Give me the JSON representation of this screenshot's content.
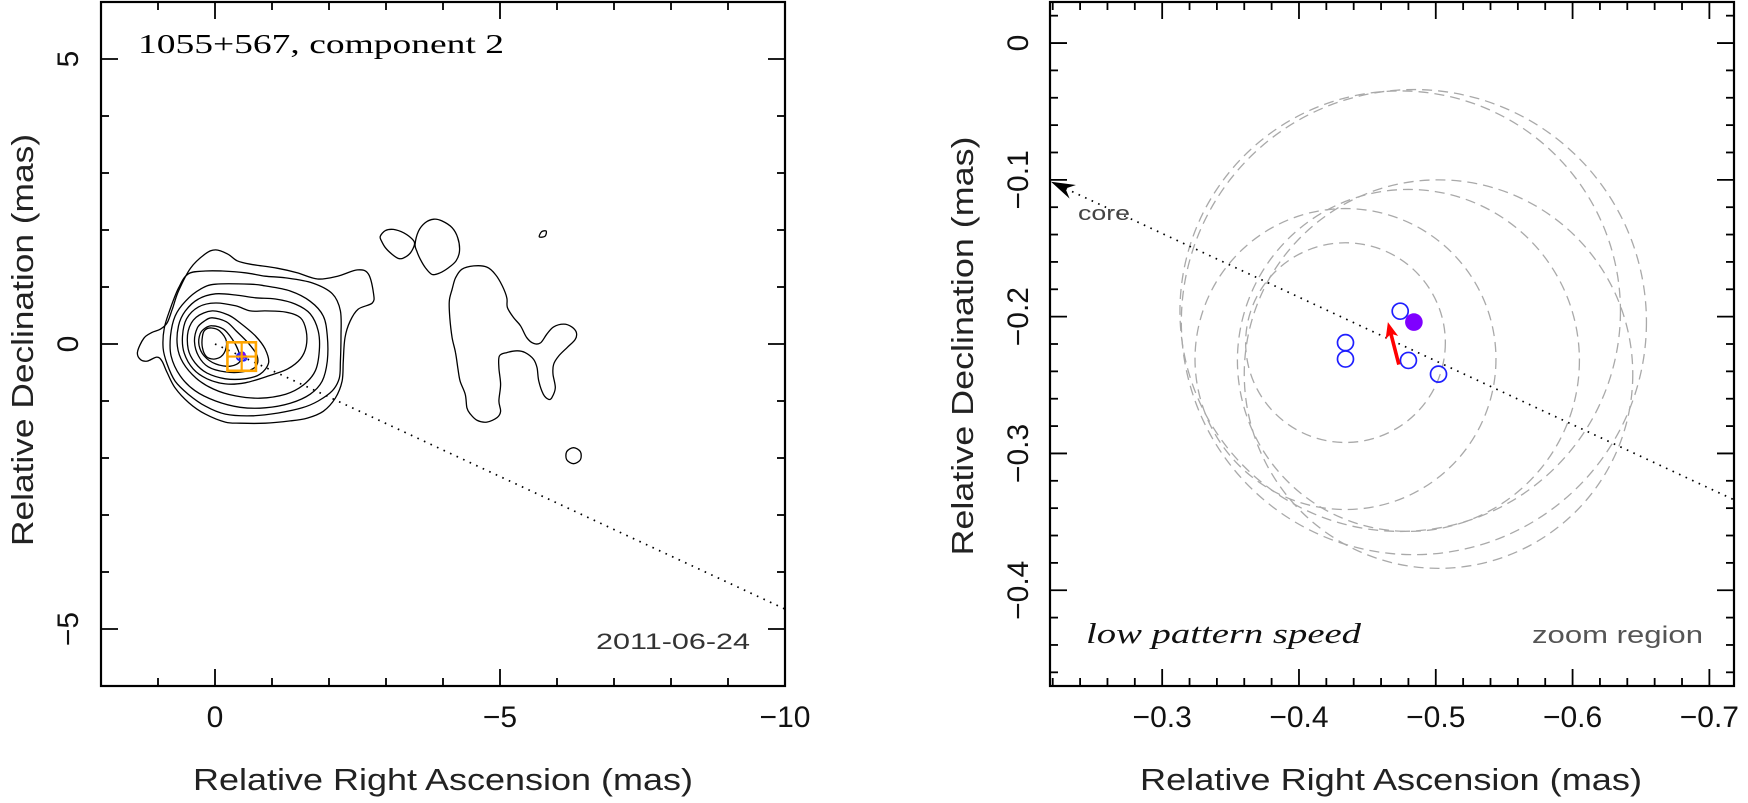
{
  "colors": {
    "open_marker": "#1f1fff",
    "filled_marker": "#7f00ff",
    "motion_arrow": "#ff0000",
    "uncertainty_circle": "#a9a9a9",
    "zoom_box": "#ffa500",
    "core_arrow": "#000000"
  },
  "chart_data": [
    {
      "type": "contour",
      "title": "1055+567, component 2",
      "annotation": "2011-06-24",
      "xlabel": "Relative Right Ascension (mas)",
      "ylabel": "Relative Declination (mas)",
      "xlim": [
        2,
        -10
      ],
      "ylim": [
        -6,
        6
      ],
      "xticks": [
        0,
        -5,
        -10
      ],
      "xtick_labels": [
        "0",
        "−5",
        "−10"
      ],
      "yticks": [
        5,
        0,
        -5
      ],
      "ytick_labels": [
        "5",
        "0",
        "−5"
      ],
      "major_tick_step": 5,
      "minor_tick_step": 1,
      "jet_axis": {
        "slope": 0.465,
        "start_x": 0,
        "style": "dotted"
      },
      "zoom_box": {
        "xlim": [
          -0.218,
          -0.718
        ],
        "ylim": [
          -0.47,
          0.03
        ]
      },
      "contours": [
        [
          [
            1.36,
            -0.14
          ],
          [
            1.25,
            0.1
          ],
          [
            1.11,
            0.2
          ],
          [
            0.96,
            0.26
          ],
          [
            0.84,
            0.37
          ],
          [
            0.75,
            0.61
          ],
          [
            0.64,
            0.93
          ],
          [
            0.43,
            1.33
          ],
          [
            0.17,
            1.58
          ],
          [
            -0.01,
            1.65
          ],
          [
            -0.22,
            1.58
          ],
          [
            -0.39,
            1.46
          ],
          [
            -0.62,
            1.4
          ],
          [
            -1.09,
            1.33
          ],
          [
            -1.44,
            1.25
          ],
          [
            -1.8,
            1.14
          ],
          [
            -2.15,
            1.19
          ],
          [
            -2.5,
            1.3
          ],
          [
            -2.69,
            1.23
          ],
          [
            -2.78,
            0.89
          ],
          [
            -2.76,
            0.72
          ],
          [
            -2.51,
            0.61
          ],
          [
            -2.37,
            0.4
          ],
          [
            -2.28,
            0.11
          ],
          [
            -2.25,
            -0.3
          ],
          [
            -2.23,
            -0.65
          ],
          [
            -2.11,
            -0.95
          ],
          [
            -1.9,
            -1.18
          ],
          [
            -1.62,
            -1.3
          ],
          [
            -1.32,
            -1.35
          ],
          [
            -0.88,
            -1.39
          ],
          [
            -0.44,
            -1.39
          ],
          [
            -0.18,
            -1.37
          ],
          [
            0.17,
            -1.23
          ],
          [
            0.46,
            -1.03
          ],
          [
            0.7,
            -0.77
          ],
          [
            0.84,
            -0.5
          ],
          [
            0.93,
            -0.3
          ],
          [
            1.02,
            -0.23
          ],
          [
            1.19,
            -0.3
          ],
          [
            1.31,
            -0.27
          ]
        ],
        [
          [
            0.17,
            1.28
          ],
          [
            -0.13,
            1.28
          ],
          [
            -0.53,
            1.25
          ],
          [
            -0.88,
            1.19
          ],
          [
            -1.24,
            1.16
          ],
          [
            -1.71,
            1.07
          ],
          [
            -2.06,
            0.88
          ],
          [
            -2.2,
            0.58
          ],
          [
            -2.21,
            0.14
          ],
          [
            -2.2,
            -0.3
          ],
          [
            -2.18,
            -0.6
          ],
          [
            -2.06,
            -0.82
          ],
          [
            -1.81,
            -1.0
          ],
          [
            -1.53,
            -1.12
          ],
          [
            -1.11,
            -1.21
          ],
          [
            -0.65,
            -1.26
          ],
          [
            -0.18,
            -1.23
          ],
          [
            0.17,
            -1.09
          ],
          [
            0.47,
            -0.88
          ],
          [
            0.7,
            -0.65
          ],
          [
            0.84,
            -0.35
          ],
          [
            0.91,
            -0.07
          ],
          [
            0.89,
            0.28
          ],
          [
            0.78,
            0.63
          ],
          [
            0.64,
            0.98
          ],
          [
            0.47,
            1.23
          ]
        ],
        [
          [
            -0.01,
            1.05
          ],
          [
            -0.62,
            1.05
          ],
          [
            -0.88,
            1.02
          ],
          [
            -1.32,
            0.93
          ],
          [
            -1.67,
            0.75
          ],
          [
            -1.9,
            0.49
          ],
          [
            -1.97,
            0.14
          ],
          [
            -1.97,
            -0.3
          ],
          [
            -1.88,
            -0.65
          ],
          [
            -1.67,
            -0.88
          ],
          [
            -1.32,
            -1.04
          ],
          [
            -0.88,
            -1.12
          ],
          [
            -0.44,
            -1.11
          ],
          [
            -0.01,
            -1.0
          ],
          [
            0.35,
            -0.82
          ],
          [
            0.61,
            -0.56
          ],
          [
            0.77,
            -0.21
          ],
          [
            0.78,
            0.14
          ],
          [
            0.7,
            0.49
          ],
          [
            0.52,
            0.75
          ],
          [
            0.26,
            0.96
          ]
        ],
        [
          [
            -0.01,
            0.88
          ],
          [
            -0.36,
            0.86
          ],
          [
            -0.71,
            0.81
          ],
          [
            -1.06,
            0.79
          ],
          [
            -1.41,
            0.7
          ],
          [
            -1.67,
            0.53
          ],
          [
            -1.81,
            0.23
          ],
          [
            -1.83,
            -0.12
          ],
          [
            -1.76,
            -0.47
          ],
          [
            -1.55,
            -0.72
          ],
          [
            -1.24,
            -0.88
          ],
          [
            -0.79,
            -0.95
          ],
          [
            -0.36,
            -0.91
          ],
          [
            0.03,
            -0.79
          ],
          [
            0.33,
            -0.6
          ],
          [
            0.56,
            -0.33
          ],
          [
            0.66,
            -0.04
          ],
          [
            0.64,
            0.32
          ],
          [
            0.52,
            0.58
          ],
          [
            0.29,
            0.79
          ]
        ],
        [
          [
            -0.01,
            0.72
          ],
          [
            -0.36,
            0.67
          ],
          [
            -0.62,
            0.58
          ],
          [
            -0.88,
            0.58
          ],
          [
            -1.24,
            0.56
          ],
          [
            -1.5,
            0.46
          ],
          [
            -1.6,
            0.23
          ],
          [
            -1.6,
            -0.04
          ],
          [
            -1.5,
            -0.26
          ],
          [
            -1.27,
            -0.44
          ],
          [
            -0.94,
            -0.56
          ],
          [
            -0.53,
            -0.68
          ],
          [
            -0.18,
            -0.7
          ],
          [
            0.14,
            -0.61
          ],
          [
            0.38,
            -0.44
          ],
          [
            0.54,
            -0.16
          ],
          [
            0.57,
            0.14
          ],
          [
            0.5,
            0.44
          ],
          [
            0.29,
            0.65
          ]
        ],
        [
          [
            0.05,
            0.58
          ],
          [
            -0.23,
            0.51
          ],
          [
            -0.44,
            0.37
          ],
          [
            -0.71,
            0.14
          ],
          [
            -0.88,
            -0.09
          ],
          [
            -0.94,
            -0.33
          ],
          [
            -0.79,
            -0.53
          ],
          [
            -0.53,
            -0.61
          ],
          [
            -0.18,
            -0.61
          ],
          [
            0.14,
            -0.51
          ],
          [
            0.35,
            -0.33
          ],
          [
            0.47,
            -0.09
          ],
          [
            0.47,
            0.23
          ],
          [
            0.33,
            0.47
          ]
        ],
        [
          [
            0.05,
            0.46
          ],
          [
            -0.2,
            0.39
          ],
          [
            -0.37,
            0.23
          ],
          [
            -0.58,
            0.02
          ],
          [
            -0.74,
            -0.21
          ],
          [
            -0.71,
            -0.4
          ],
          [
            -0.48,
            -0.49
          ],
          [
            -0.18,
            -0.49
          ],
          [
            0.12,
            -0.4
          ],
          [
            0.29,
            -0.21
          ],
          [
            0.36,
            0.04
          ],
          [
            0.31,
            0.28
          ],
          [
            0.19,
            0.4
          ]
        ],
        [
          [
            0.05,
            0.32
          ],
          [
            -0.15,
            0.26
          ],
          [
            -0.3,
            0.09
          ],
          [
            -0.41,
            -0.12
          ],
          [
            -0.44,
            -0.3
          ],
          [
            -0.27,
            -0.39
          ],
          [
            -0.01,
            -0.35
          ],
          [
            0.19,
            -0.21
          ],
          [
            0.28,
            -0.02
          ],
          [
            0.26,
            0.18
          ],
          [
            0.17,
            0.28
          ]
        ],
        [
          [
            0.06,
            0.28
          ],
          [
            -0.08,
            0.23
          ],
          [
            -0.2,
            0.05
          ],
          [
            -0.16,
            -0.16
          ],
          [
            -0.02,
            -0.26
          ],
          [
            0.14,
            -0.23
          ],
          [
            0.22,
            -0.07
          ],
          [
            0.22,
            0.14
          ],
          [
            0.17,
            0.25
          ]
        ],
        [
          [
            -2.9,
            1.89
          ],
          [
            -2.99,
            1.99
          ],
          [
            -3.13,
            2.01
          ],
          [
            -3.31,
            1.95
          ],
          [
            -3.46,
            1.84
          ],
          [
            -3.5,
            1.75
          ],
          [
            -3.43,
            1.6
          ],
          [
            -3.31,
            1.51
          ],
          [
            -3.22,
            1.5
          ],
          [
            -3.11,
            1.57
          ],
          [
            -2.99,
            1.69
          ],
          [
            -2.92,
            1.81
          ]
        ],
        [
          [
            -3.51,
            1.75
          ],
          [
            -3.57,
            1.98
          ],
          [
            -3.69,
            2.13
          ],
          [
            -3.84,
            2.19
          ],
          [
            -3.98,
            2.16
          ],
          [
            -4.16,
            2.04
          ],
          [
            -4.26,
            1.86
          ],
          [
            -4.29,
            1.63
          ],
          [
            -4.23,
            1.46
          ],
          [
            -4.1,
            1.34
          ],
          [
            -3.95,
            1.25
          ],
          [
            -3.81,
            1.22
          ],
          [
            -3.69,
            1.34
          ],
          [
            -3.6,
            1.49
          ],
          [
            -3.54,
            1.63
          ]
        ],
        [
          [
            -5.69,
            1.88
          ],
          [
            -5.73,
            1.97
          ],
          [
            -5.81,
            1.98
          ],
          [
            -5.79,
            1.89
          ]
        ],
        [
          [
            -4.22,
            1.16
          ],
          [
            -4.33,
            1.31
          ],
          [
            -4.54,
            1.37
          ],
          [
            -4.77,
            1.35
          ],
          [
            -4.92,
            1.22
          ],
          [
            -5.04,
            1.02
          ],
          [
            -5.12,
            0.81
          ],
          [
            -5.13,
            0.64
          ],
          [
            -5.24,
            0.46
          ],
          [
            -5.36,
            0.32
          ],
          [
            -5.47,
            0.11
          ],
          [
            -5.59,
            0.01
          ],
          [
            -5.71,
            0.02
          ],
          [
            -5.82,
            0.17
          ],
          [
            -5.94,
            0.3
          ],
          [
            -6.12,
            0.35
          ],
          [
            -6.26,
            0.3
          ],
          [
            -6.34,
            0.2
          ],
          [
            -6.32,
            0.08
          ],
          [
            -6.18,
            -0.06
          ],
          [
            -6.03,
            -0.21
          ],
          [
            -5.94,
            -0.36
          ],
          [
            -5.93,
            -0.53
          ],
          [
            -5.97,
            -0.77
          ],
          [
            -5.91,
            -0.94
          ],
          [
            -5.85,
            -0.97
          ],
          [
            -5.76,
            -0.88
          ],
          [
            -5.68,
            -0.65
          ],
          [
            -5.65,
            -0.42
          ],
          [
            -5.59,
            -0.27
          ],
          [
            -5.44,
            -0.15
          ],
          [
            -5.3,
            -0.12
          ],
          [
            -5.12,
            -0.15
          ],
          [
            -4.99,
            -0.21
          ],
          [
            -4.98,
            -0.42
          ],
          [
            -5.01,
            -0.71
          ],
          [
            -4.98,
            -1.0
          ],
          [
            -5.01,
            -1.18
          ],
          [
            -4.95,
            -1.29
          ],
          [
            -4.77,
            -1.37
          ],
          [
            -4.6,
            -1.34
          ],
          [
            -4.48,
            -1.23
          ],
          [
            -4.42,
            -1.12
          ],
          [
            -4.39,
            -0.88
          ],
          [
            -4.3,
            -0.65
          ],
          [
            -4.26,
            -0.42
          ],
          [
            -4.22,
            -0.15
          ],
          [
            -4.16,
            0.11
          ],
          [
            -4.12,
            0.46
          ],
          [
            -4.11,
            0.75
          ],
          [
            -4.16,
            0.96
          ]
        ],
        [
          [
            -6.29,
            -1.82
          ],
          [
            -6.41,
            -1.89
          ],
          [
            -6.41,
            -2.03
          ],
          [
            -6.29,
            -2.1
          ],
          [
            -6.17,
            -2.03
          ],
          [
            -6.17,
            -1.89
          ]
        ]
      ]
    },
    {
      "type": "scatter",
      "xlabel": "Relative Right Ascension (mas)",
      "ylabel": "Relative Declination (mas)",
      "xlim": [
        -0.218,
        -0.718
      ],
      "ylim": [
        -0.47,
        0.03
      ],
      "xticks": [
        -0.3,
        -0.4,
        -0.5,
        -0.6,
        -0.7
      ],
      "xtick_labels": [
        "−0.3",
        "−0.4",
        "−0.5",
        "−0.6",
        "−0.7"
      ],
      "yticks": [
        0,
        -0.1,
        -0.2,
        -0.3,
        -0.4
      ],
      "ytick_labels": [
        "0",
        "−0.1",
        "−0.2",
        "−0.3",
        "−0.4"
      ],
      "major_tick_step": 0.1,
      "minor_tick_step": 0.02,
      "core_label": "core",
      "core_direction": {
        "slope": 0.465,
        "style": "dotted"
      },
      "label_left": "low pattern speed",
      "label_right": "zoom region",
      "open_components": [
        {
          "x": -0.474,
          "y": -0.196
        },
        {
          "x": -0.434,
          "y": -0.219
        },
        {
          "x": -0.434,
          "y": -0.231
        },
        {
          "x": -0.48,
          "y": -0.232
        },
        {
          "x": -0.502,
          "y": -0.242
        }
      ],
      "filled_component": {
        "x": -0.484,
        "y": -0.204
      },
      "uncertainty_circles": [
        {
          "x": -0.434,
          "y": -0.219,
          "radius_mas": 0.073
        },
        {
          "x": -0.434,
          "y": -0.231,
          "radius_mas": 0.11
        },
        {
          "x": -0.48,
          "y": -0.232,
          "radius_mas": 0.125
        },
        {
          "x": -0.502,
          "y": -0.242,
          "radius_mas": 0.142
        },
        {
          "x": -0.474,
          "y": -0.196,
          "radius_mas": 0.161
        },
        {
          "x": -0.484,
          "y": -0.204,
          "radius_mas": 0.17
        }
      ],
      "motion_arrow": {
        "from": [
          -0.473,
          -0.235
        ],
        "to": [
          -0.465,
          -0.204
        ]
      }
    }
  ]
}
